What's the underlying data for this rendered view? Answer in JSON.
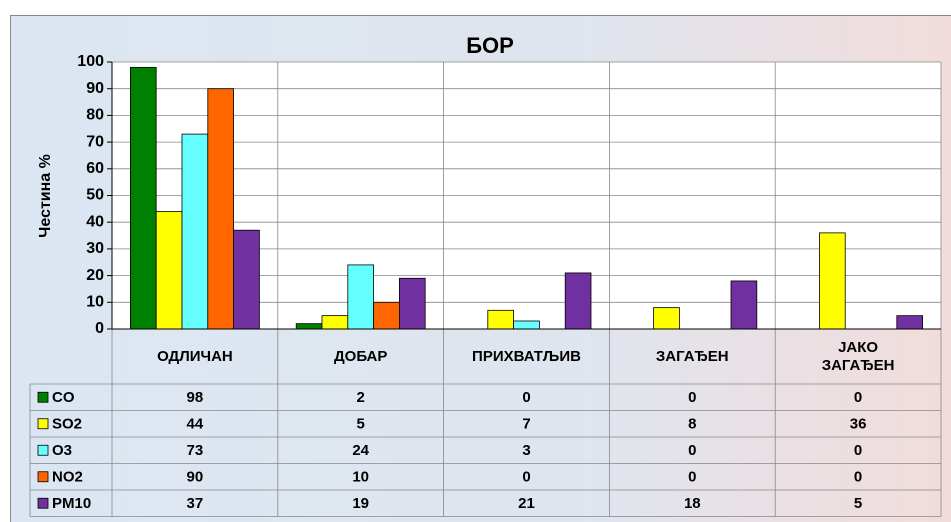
{
  "chart_data": {
    "type": "bar",
    "title": "БОР",
    "y_label": "Честина %",
    "categories": [
      "ОДЛИЧАН",
      "ДОБАР",
      "ПРИХВАТЉИВ",
      "ЗАГАЂЕН",
      "ЈАКО ЗАГАЂЕН"
    ],
    "series": [
      {
        "name": "CO",
        "color": "#008000",
        "values": [
          98,
          2,
          0,
          0,
          0
        ]
      },
      {
        "name": "SO2",
        "color": "#ffff00",
        "values": [
          44,
          5,
          7,
          8,
          36
        ]
      },
      {
        "name": "O3",
        "color": "#66ffff",
        "values": [
          73,
          24,
          3,
          0,
          0
        ]
      },
      {
        "name": "NO2",
        "color": "#ff6600",
        "values": [
          90,
          10,
          0,
          0,
          0
        ]
      },
      {
        "name": "PM10",
        "color": "#7030a0",
        "values": [
          37,
          19,
          21,
          18,
          5
        ]
      }
    ],
    "ylim": [
      0,
      100
    ],
    "yticks": [
      0,
      10,
      20,
      30,
      40,
      50,
      60,
      70,
      80,
      90,
      100
    ],
    "grid": true
  }
}
